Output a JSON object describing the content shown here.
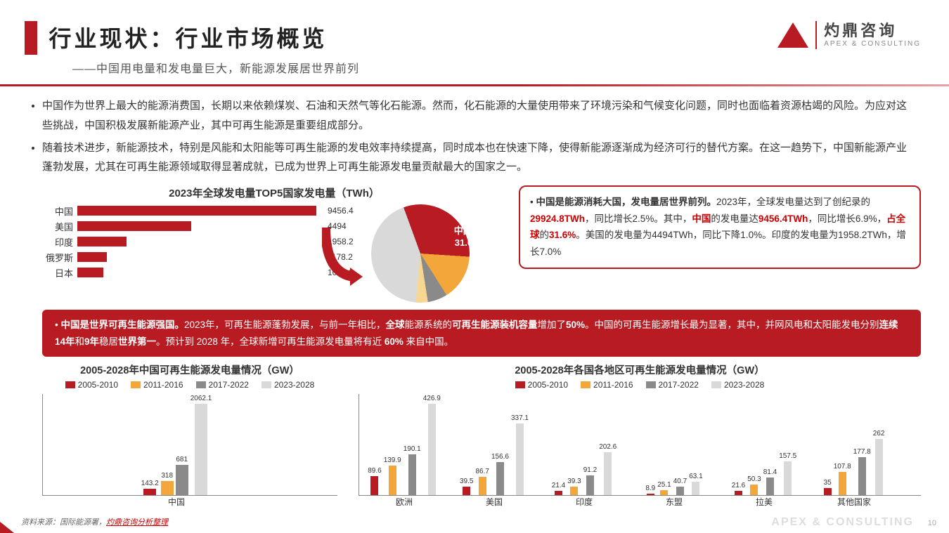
{
  "header": {
    "title": "行业现状：行业市场概览",
    "subtitle": "——中国用电量和发电量巨大，新能源发展居世界前列",
    "logo_cn": "灼鼎咨询",
    "logo_en": "APEX & CONSULTING"
  },
  "paragraphs": [
    "中国作为世界上最大的能源消费国，长期以来依赖煤炭、石油和天然气等化石能源。然而，化石能源的大量使用带来了环境污染和气候变化问题，同时也面临着资源枯竭的风险。为应对这些挑战，中国积极发展新能源产业，其中可再生能源是重要组成部分。",
    "随着技术进步，新能源技术，特别是风能和太阳能等可再生能源的发电效率持续提高，同时成本也在快速下降，使得新能源逐渐成为经济可行的替代方案。在这一趋势下，中国新能源产业蓬勃发展，尤其在可再生能源领域取得显著成就，已成为世界上可再生能源发电量贡献最大的国家之一。"
  ],
  "top5_chart": {
    "title": "2023年全球发电量TOP5国家发电量（TWh）",
    "max": 9456.4,
    "bar_color": "#b81c22",
    "rows": [
      {
        "label": "中国",
        "value": 9456.4
      },
      {
        "label": "美国",
        "value": 4494
      },
      {
        "label": "印度",
        "value": 1958.2
      },
      {
        "label": "俄罗斯",
        "value": 1178.2
      },
      {
        "label": "日本",
        "value": 1040.6
      }
    ]
  },
  "pie": {
    "label_line1": "中国：",
    "label_line2": "31.6%",
    "slices": [
      {
        "color": "#b81c22",
        "pct": 31.6
      },
      {
        "color": "#f3a73b",
        "pct": 15.0
      },
      {
        "color": "#8a8a8a",
        "pct": 6.5
      },
      {
        "color": "#f6d690",
        "pct": 3.9
      },
      {
        "color": "#d9d9d9",
        "pct": 43.0
      }
    ]
  },
  "callout": {
    "lead": "中国是能源消耗大国，发电量居世界前列。",
    "t1": "2023年，全球发电量达到了创纪录的",
    "v1": "29924.8TWh",
    "t2": "，同比增长2.5%。其中，",
    "v2": "中国",
    "t3": "的发电量达",
    "v3": "9456.4TWh",
    "t4": "，同比增长6.9%，",
    "v4": "占全球",
    "t5": "的",
    "v5": "31.6%",
    "t6": "。美国的发电量为4494TWh，同比下降1.0%。印度的发电量为1958.2TWh，增长7.0%"
  },
  "red_banner": {
    "lead": "中国是世界可再生能源强国。",
    "body_a": "2023年，可再生能源蓬勃发展，与前一年相比，",
    "b1": "全球",
    "body_b": "能源系统的",
    "b2": "可再生能源装机容量",
    "body_c": "增加了",
    "b3": "50%",
    "body_d": "。中国的可再生能源增长最为显著，其中，并网风电和太阳能发电分别",
    "b4": "连续14年",
    "body_e": "和",
    "b5": "9年",
    "body_f": "稳居",
    "b6": "世界第一",
    "body_g": "。预计到 2028 年，全球新增可再生能源发电量将有近 ",
    "b7": "60%",
    "body_h": " 来自中国。"
  },
  "legend": {
    "periods": [
      "2005-2010",
      "2011-2016",
      "2017-2022",
      "2023-2028"
    ],
    "colors": [
      "#b81c22",
      "#f3a73b",
      "#8a8a8a",
      "#d9d9d9"
    ]
  },
  "chart_left": {
    "title": "2005-2028年中国可再生能源发电量情况（GW）",
    "max": 2062.1,
    "groups": [
      {
        "label": "中国",
        "values": [
          143.2,
          318,
          681,
          2062.1
        ]
      }
    ]
  },
  "chart_right": {
    "title": "2005-2028年各国各地区可再生能源发电量情况（GW）",
    "max": 426.9,
    "groups": [
      {
        "label": "欧洲",
        "values": [
          89.6,
          139.9,
          190.1,
          426.9
        ]
      },
      {
        "label": "美国",
        "values": [
          39.5,
          86.7,
          156.6,
          337.1
        ]
      },
      {
        "label": "印度",
        "values": [
          21.4,
          39.3,
          91.2,
          202.6
        ]
      },
      {
        "label": "东盟",
        "values": [
          8.9,
          25.1,
          40.7,
          63.1
        ]
      },
      {
        "label": "拉美",
        "values": [
          21.6,
          50.3,
          81.4,
          157.5
        ]
      },
      {
        "label": "其他国家",
        "values": [
          35.0,
          107.8,
          177.8,
          262.0
        ]
      }
    ]
  },
  "source": {
    "prefix": "资料来源：国际能源署，",
    "link": "灼鼎咨询分析整理"
  },
  "watermark": "APEX & CONSULTING",
  "pagenum": "10"
}
